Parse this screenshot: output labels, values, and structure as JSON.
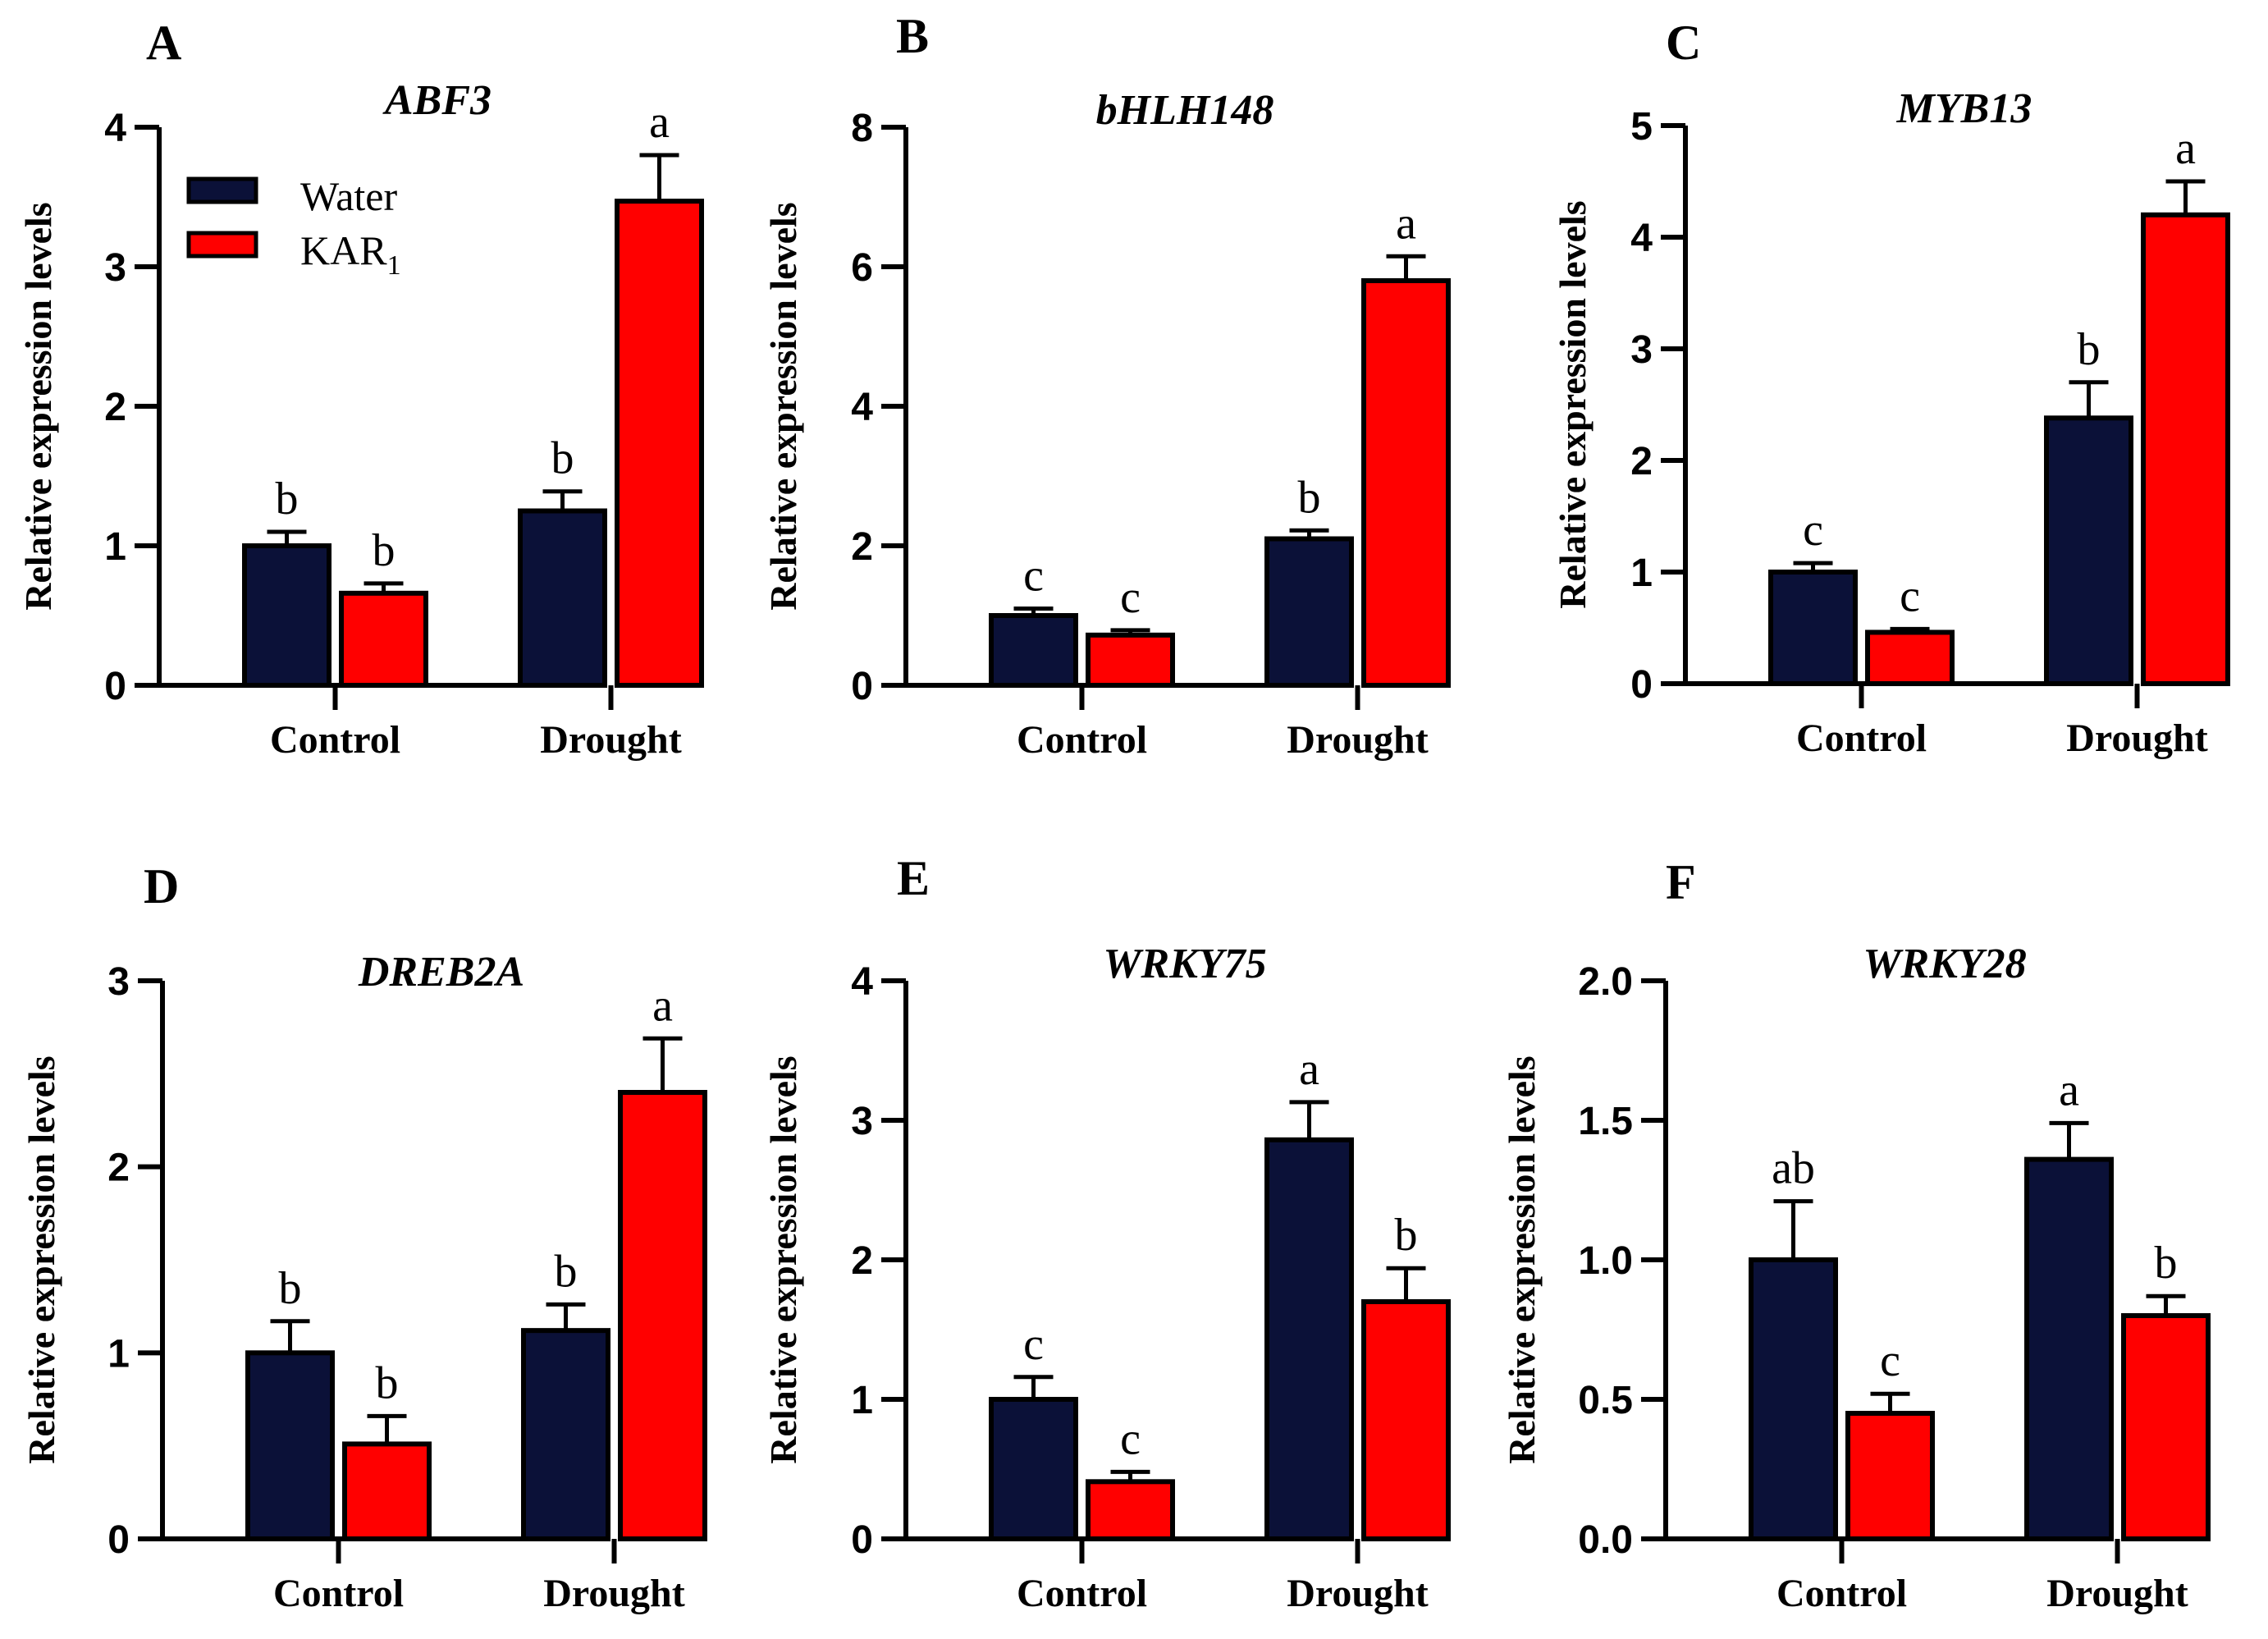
{
  "figure": {
    "categories": [
      "Control",
      "Drought"
    ],
    "ylabel": "Relative expression levels",
    "legend": {
      "items": [
        {
          "name": "Water",
          "color": "#0b1138"
        },
        {
          "name": "KAR",
          "subscript": "1",
          "color": "#ff0000"
        }
      ]
    }
  },
  "chart_data": [
    {
      "type": "bar",
      "panel": "A",
      "title": "ABF3",
      "ylabel": "Relative expression levels",
      "categories": [
        "Control",
        "Drought"
      ],
      "ylim": [
        0,
        4
      ],
      "yticks": [
        0,
        1,
        2,
        3,
        4
      ],
      "series": [
        {
          "name": "Water",
          "values": [
            1.0,
            1.25
          ],
          "errors": [
            0.1,
            0.14
          ],
          "letters": [
            "b",
            "b"
          ]
        },
        {
          "name": "KAR1",
          "values": [
            0.66,
            3.47
          ],
          "errors": [
            0.07,
            0.33
          ],
          "letters": [
            "b",
            "a"
          ]
        }
      ]
    },
    {
      "type": "bar",
      "panel": "B",
      "title": "bHLH148",
      "ylabel": "Relative expression levels",
      "categories": [
        "Control",
        "Drought"
      ],
      "ylim": [
        0,
        8
      ],
      "yticks": [
        0,
        2,
        4,
        6,
        8
      ],
      "series": [
        {
          "name": "Water",
          "values": [
            1.0,
            2.1
          ],
          "errors": [
            0.1,
            0.12
          ],
          "letters": [
            "c",
            "b"
          ]
        },
        {
          "name": "KAR1",
          "values": [
            0.72,
            5.8
          ],
          "errors": [
            0.07,
            0.35
          ],
          "letters": [
            "c",
            "a"
          ]
        }
      ]
    },
    {
      "type": "bar",
      "panel": "C",
      "title": "MYB13",
      "ylabel": "Relative expression levels",
      "categories": [
        "Control",
        "Drought"
      ],
      "ylim": [
        0,
        5
      ],
      "yticks": [
        0,
        1,
        2,
        3,
        4,
        5
      ],
      "series": [
        {
          "name": "Water",
          "values": [
            1.0,
            2.38
          ],
          "errors": [
            0.08,
            0.32
          ],
          "letters": [
            "c",
            "b"
          ]
        },
        {
          "name": "KAR1",
          "values": [
            0.46,
            4.2
          ],
          "errors": [
            0.03,
            0.3
          ],
          "letters": [
            "c",
            "a"
          ]
        }
      ]
    },
    {
      "type": "bar",
      "panel": "D",
      "title": "DREB2A",
      "ylabel": "Relative expression levels",
      "categories": [
        "Control",
        "Drought"
      ],
      "ylim": [
        0,
        3
      ],
      "yticks": [
        0,
        1,
        2,
        3
      ],
      "series": [
        {
          "name": "Water",
          "values": [
            1.0,
            1.12
          ],
          "errors": [
            0.17,
            0.14
          ],
          "letters": [
            "b",
            "b"
          ]
        },
        {
          "name": "KAR1",
          "values": [
            0.51,
            2.4
          ],
          "errors": [
            0.15,
            0.29
          ],
          "letters": [
            "b",
            "a"
          ]
        }
      ]
    },
    {
      "type": "bar",
      "panel": "E",
      "title": "WRKY75",
      "ylabel": "Relative expression levels",
      "categories": [
        "Control",
        "Drought"
      ],
      "ylim": [
        0,
        4
      ],
      "yticks": [
        0,
        1,
        2,
        3,
        4
      ],
      "series": [
        {
          "name": "Water",
          "values": [
            1.0,
            2.86
          ],
          "errors": [
            0.16,
            0.27
          ],
          "letters": [
            "c",
            "a"
          ]
        },
        {
          "name": "KAR1",
          "values": [
            0.41,
            1.7
          ],
          "errors": [
            0.07,
            0.24
          ],
          "letters": [
            "c",
            "b"
          ]
        }
      ]
    },
    {
      "type": "bar",
      "panel": "F",
      "title": "WRKY28",
      "ylabel": "Relative expression levels",
      "categories": [
        "Control",
        "Drought"
      ],
      "ylim": [
        0,
        2
      ],
      "yticks": [
        "0.0",
        "0.5",
        "1.0",
        "1.5",
        "2.0"
      ],
      "series": [
        {
          "name": "Water",
          "values": [
            1.0,
            1.36
          ],
          "errors": [
            0.21,
            0.13
          ],
          "letters": [
            "ab",
            "a"
          ]
        },
        {
          "name": "KAR1",
          "values": [
            0.45,
            0.8
          ],
          "errors": [
            0.07,
            0.07
          ],
          "letters": [
            "c",
            "b"
          ]
        }
      ]
    }
  ]
}
